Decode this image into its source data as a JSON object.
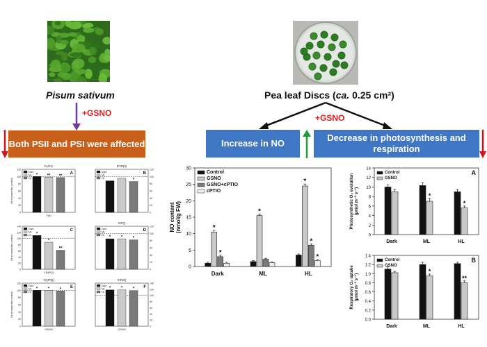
{
  "left": {
    "species": "Pisum sativum",
    "treatment": "+GSNO",
    "result_box": "Both PSII and PSI were affected"
  },
  "right": {
    "caption_pre": "Pea leaf Discs (",
    "caption_italic": "ca.",
    "caption_post": " 0.25 cm²)",
    "treatment": "+GSNO",
    "box_no": "Increase in NO",
    "box_photo": "Decrease in photosynthesis and respiration"
  },
  "colors": {
    "orange_box": "#c8601c",
    "blue_box": "#3f77c5",
    "red_arrow": "#d0121b",
    "green_arrow": "#1f9a3a",
    "purple_arrow": "#6a3ea1"
  },
  "chart_data": [
    {
      "id": "no_content",
      "type": "bar",
      "categories": [
        "Dark",
        "ML",
        "HL"
      ],
      "series": [
        {
          "name": "Control",
          "color": "#111111",
          "values": [
            1,
            1.5,
            3.5
          ],
          "err": [
            0.3,
            0.3,
            0.3
          ],
          "sig": [
            "",
            "",
            ""
          ]
        },
        {
          "name": "GSNO",
          "color": "#c9c9c9",
          "values": [
            10.5,
            15.5,
            24.5
          ],
          "err": [
            0.5,
            0.5,
            0.6
          ],
          "sig": [
            "*",
            "*",
            "*"
          ]
        },
        {
          "name": "GSNO+cPTIO",
          "color": "#7a7a7a",
          "values": [
            3,
            2.2,
            6.5
          ],
          "err": [
            0.4,
            0.3,
            0.4
          ],
          "sig": [
            "*",
            "",
            "*"
          ]
        },
        {
          "name": "cPTIO",
          "color": "#ededed",
          "values": [
            1,
            1.2,
            1.8
          ],
          "err": [
            0.3,
            0.2,
            0.3
          ],
          "sig": [
            "",
            "",
            "*"
          ]
        }
      ],
      "ylabel_line1": "NO content",
      "ylabel_line2": "(nmol/g FW)",
      "ylim": [
        0,
        30
      ],
      "yticks": [
        "0",
        "5",
        "10",
        "15",
        "20",
        "25",
        "30"
      ],
      "legend_position": "top-left"
    },
    {
      "id": "photosynthetic_o2",
      "type": "bar",
      "panel_label": "A",
      "categories": [
        "Dark",
        "ML",
        "HL"
      ],
      "series": [
        {
          "name": "Control",
          "color": "#111111",
          "values": [
            10,
            10.3,
            9
          ],
          "err": [
            0.4,
            0.6,
            0.5
          ],
          "sig": [
            "",
            "",
            ""
          ]
        },
        {
          "name": "GSNO",
          "color": "#c9c9c9",
          "values": [
            9,
            7,
            5.6
          ],
          "err": [
            0.5,
            0.6,
            0.4
          ],
          "sig": [
            "",
            "*",
            "*"
          ]
        }
      ],
      "ylabel_line1": "Photosynthetic O₂ evolution",
      "ylabel_line2": "(µmol m⁻² s⁻¹)",
      "ylim": [
        0,
        14
      ],
      "yticks": [
        "0",
        "2",
        "4",
        "6",
        "8",
        "10",
        "12",
        "14"
      ],
      "legend_position": "top-left"
    },
    {
      "id": "respiratory_o2",
      "type": "bar",
      "panel_label": "B",
      "categories": [
        "Dark",
        "ML",
        "HL"
      ],
      "series": [
        {
          "name": "Control",
          "color": "#111111",
          "values": [
            1.1,
            1.2,
            1.22
          ],
          "err": [
            0.05,
            0.05,
            0.03
          ],
          "sig": [
            "",
            "",
            ""
          ]
        },
        {
          "name": "GSNO",
          "color": "#c9c9c9",
          "values": [
            1.02,
            0.95,
            0.8
          ],
          "err": [
            0.03,
            0.04,
            0.04
          ],
          "sig": [
            "",
            "*",
            "**"
          ]
        }
      ],
      "ylabel_line1": "Respiratory O₂ uptake",
      "ylabel_line2": "(µmol m⁻² s⁻¹)",
      "ylim": [
        0,
        1.4
      ],
      "yticks": [
        "0.0",
        "0.2",
        "0.4",
        "0.6",
        "0.8",
        "1.0",
        "1.2",
        "1.4"
      ],
      "legend_position": "top-left"
    },
    {
      "id": "panel_A",
      "type": "bar",
      "panel_label": "A",
      "header": "Fv/Fm",
      "footer": "Y(II)",
      "legend": [
        "Dark",
        "ML",
        "HL"
      ],
      "series_colors": [
        "#111111",
        "#c9c9c9",
        "#7a7a7a"
      ],
      "values": [
        100,
        98,
        97
      ],
      "sig": [
        "*",
        "**",
        "**"
      ],
      "ylim": [
        0,
        120
      ],
      "ref_line": 100,
      "yticks": [
        "0",
        "20",
        "40",
        "60",
        "80",
        "100",
        "120"
      ],
      "ylabel": "(% of respective control)"
    },
    {
      "id": "panel_B",
      "type": "bar",
      "panel_label": "B",
      "header": "ETR(II)",
      "footer": "",
      "legend": [
        "Dark",
        "ML",
        "HL"
      ],
      "series_colors": [
        "#111111",
        "#c9c9c9",
        "#7a7a7a"
      ],
      "values": [
        88,
        95,
        86
      ],
      "sig": [
        "",
        "",
        "*"
      ],
      "ylim": [
        0,
        120
      ],
      "ref_line": 100,
      "yticks": [
        "0",
        "20",
        "40",
        "60",
        "80",
        "100",
        "120"
      ],
      "ylabel": "(% of respective control)"
    },
    {
      "id": "panel_C",
      "type": "bar",
      "panel_label": "C",
      "header": "",
      "footer": "Y(NPQ)",
      "legend": [
        "Dark",
        "ML",
        "HL"
      ],
      "series_colors": [
        "#111111",
        "#c9c9c9",
        "#7a7a7a"
      ],
      "values": [
        110,
        88,
        62
      ],
      "sig": [
        "*",
        "*",
        "**"
      ],
      "ylim": [
        0,
        140
      ],
      "ref_line": 100,
      "yticks": [
        "0",
        "20",
        "40",
        "60",
        "80",
        "100",
        "120",
        "140"
      ],
      "ylabel": "(% of respective control)"
    },
    {
      "id": "panel_D",
      "type": "bar",
      "panel_label": "D",
      "header": "NPQ",
      "footer": "",
      "legend": [
        "Dark",
        "ML",
        "HL"
      ],
      "series_colors": [
        "#111111",
        "#c9c9c9",
        "#7a7a7a"
      ],
      "values": [
        85,
        85,
        82
      ],
      "sig": [
        "*",
        "*",
        "*"
      ],
      "ylim": [
        0,
        120
      ],
      "ref_line": 100,
      "yticks": [
        "0",
        "20",
        "40",
        "60",
        "80",
        "100",
        "120"
      ],
      "ylabel": "(% of respective control)"
    },
    {
      "id": "panel_E",
      "type": "bar",
      "panel_label": "E",
      "header": "Y(NPQ)",
      "footer": "GSNO",
      "legend": [
        "Dark",
        "ML",
        "HL"
      ],
      "series_colors": [
        "#111111",
        "#c9c9c9",
        "#7a7a7a"
      ],
      "values": [
        100,
        100,
        98
      ],
      "sig": [
        "*",
        "*",
        "*"
      ],
      "ylim": [
        0,
        120
      ],
      "ref_line": 100,
      "yticks": [
        "0",
        "20",
        "40",
        "60",
        "80",
        "100",
        "120"
      ],
      "ylabel": "(% of respective control)"
    },
    {
      "id": "panel_F",
      "type": "bar",
      "panel_label": "F",
      "header": "Y(NO)",
      "footer": "GSNO",
      "legend": [
        "Dark",
        "ML",
        "HL"
      ],
      "series_colors": [
        "#111111",
        "#c9c9c9",
        "#7a7a7a"
      ],
      "values": [
        118,
        118,
        116
      ],
      "sig": [
        "*",
        "*",
        "*"
      ],
      "ylim": [
        0,
        140
      ],
      "ref_line": 100,
      "yticks": [
        "0",
        "20",
        "40",
        "60",
        "80",
        "100",
        "120",
        "140"
      ],
      "ylabel": "(% of respective control)"
    }
  ]
}
